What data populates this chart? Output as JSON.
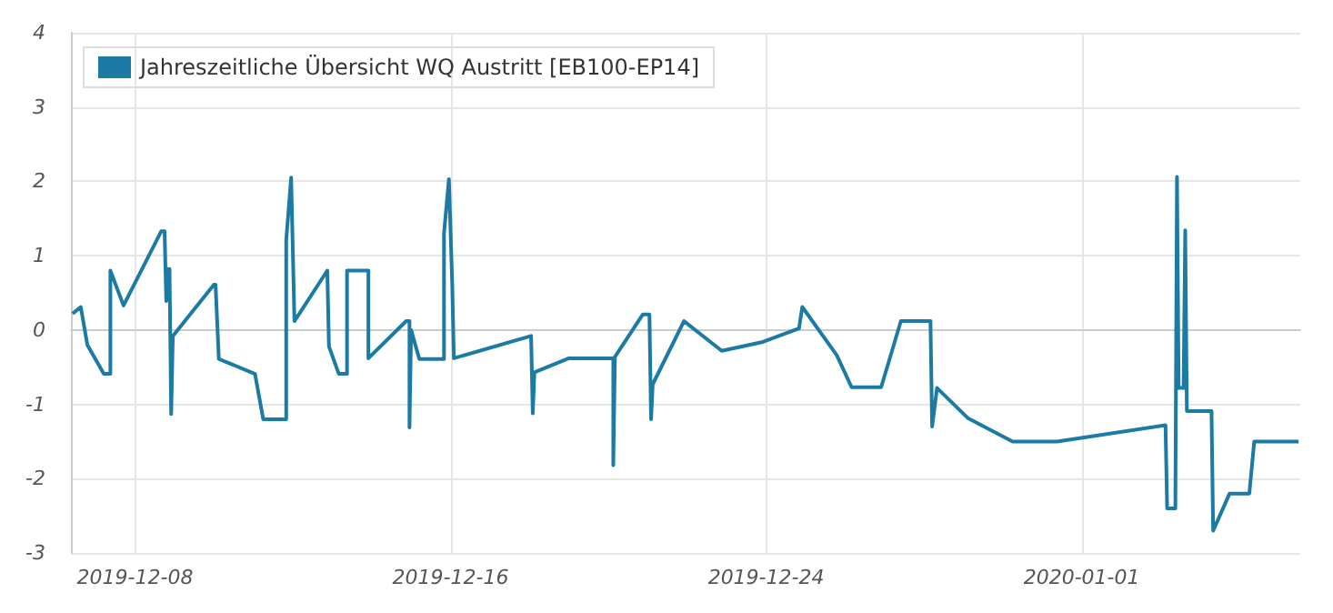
{
  "chart_data": {
    "type": "line",
    "legend": "top left",
    "grid": true,
    "marker": "none",
    "line_style": "solid",
    "xlim": [
      "2019-12-06T09:00",
      "2020-01-06T13:00"
    ],
    "xticks": [
      "2019-12-08",
      "2019-12-16",
      "2019-12-24",
      "2020-01-01"
    ],
    "ylim": [
      -3,
      4
    ],
    "yticks": [
      -3,
      -2,
      -1,
      0,
      1,
      2,
      3,
      4
    ],
    "x": [
      "2019-12-06T10:00",
      "2019-12-06T15:00",
      "2019-12-06T19:00",
      "2019-12-07T05:00",
      "2019-12-07T09:00",
      "2019-12-07T09:00",
      "2019-12-07T17:00",
      "2019-12-08T16:00",
      "2019-12-08T18:00",
      "2019-12-08T19:00",
      "2019-12-08T20:00",
      "2019-12-08T21:00",
      "2019-12-08T22:00",
      "2019-12-08T23:00",
      "2019-12-10T00:00",
      "2019-12-10T01:00",
      "2019-12-10T03:00",
      "2019-12-11T01:00",
      "2019-12-11T06:00",
      "2019-12-11T20:00",
      "2019-12-11T20:00",
      "2019-12-11T23:00",
      "2019-12-12T01:00",
      "2019-12-12T21:00",
      "2019-12-12T22:00",
      "2019-12-13T04:00",
      "2019-12-13T09:00",
      "2019-12-13T09:00",
      "2019-12-13T22:00",
      "2019-12-13T22:00",
      "2019-12-14T21:00",
      "2019-12-14T23:00",
      "2019-12-14T23:00",
      "2019-12-15T00:00",
      "2019-12-15T05:00",
      "2019-12-15T20:00",
      "2019-12-15T20:00",
      "2019-12-15T23:00",
      "2019-12-16T01:00",
      "2019-12-16T02:00",
      "2019-12-18T01:00",
      "2019-12-18T02:00",
      "2019-12-18T03:00",
      "2019-12-19T00:00",
      "2019-12-20T03:00",
      "2019-12-20T03:00",
      "2019-12-20T04:00",
      "2019-12-20T21:00",
      "2019-12-21T01:00",
      "2019-12-21T02:00",
      "2019-12-21T03:00",
      "2019-12-21T22:00",
      "2019-12-22T21:00",
      "2019-12-23T22:00",
      "2019-12-24T20:00",
      "2019-12-24T22:00",
      "2019-12-25T19:00",
      "2019-12-26T04:00",
      "2019-12-26T22:00",
      "2019-12-27T10:00",
      "2019-12-28T04:00",
      "2019-12-28T05:00",
      "2019-12-28T08:00",
      "2019-12-29T03:00",
      "2019-12-30T06:00",
      "2019-12-31T09:00",
      "2020-01-03T03:00",
      "2020-01-03T04:00",
      "2020-01-03T09:00",
      "2020-01-03T10:00",
      "2020-01-03T11:00",
      "2020-01-03T14:00",
      "2020-01-03T15:00",
      "2020-01-03T16:00",
      "2020-01-04T07:00",
      "2020-01-04T08:00",
      "2020-01-04T18:00",
      "2020-01-05T06:00",
      "2020-01-05T09:00",
      "2020-01-06T12:00"
    ],
    "series": [
      {
        "name": "Jahreszeitliche Übersicht WQ Austritt [EB100-EP14]",
        "color": "#1b7ba4",
        "values": [
          0.22,
          0.31,
          -0.2,
          -0.59,
          -0.59,
          0.8,
          0.33,
          1.33,
          1.33,
          0.39,
          0.82,
          0.82,
          -1.13,
          -0.08,
          0.61,
          0.61,
          -0.39,
          -0.59,
          -1.2,
          -1.2,
          1.21,
          2.05,
          0.12,
          0.8,
          -0.22,
          -0.59,
          -0.59,
          0.8,
          0.8,
          -0.38,
          0.12,
          0.12,
          -1.31,
          0.0,
          -0.39,
          -0.39,
          1.3,
          2.03,
          0.63,
          -0.38,
          -0.08,
          -1.12,
          -0.57,
          -0.38,
          -0.38,
          -1.82,
          -0.36,
          0.21,
          0.21,
          -1.2,
          -0.73,
          0.12,
          -0.28,
          -0.16,
          0.02,
          0.31,
          -0.34,
          -0.77,
          -0.77,
          0.12,
          0.12,
          -1.3,
          -0.78,
          -1.19,
          -1.5,
          -1.5,
          -1.28,
          -2.4,
          -2.4,
          2.06,
          -0.78,
          -0.78,
          1.34,
          -1.09,
          -1.09,
          -2.7,
          -2.2,
          -2.2,
          -1.5,
          -1.5
        ]
      }
    ]
  }
}
